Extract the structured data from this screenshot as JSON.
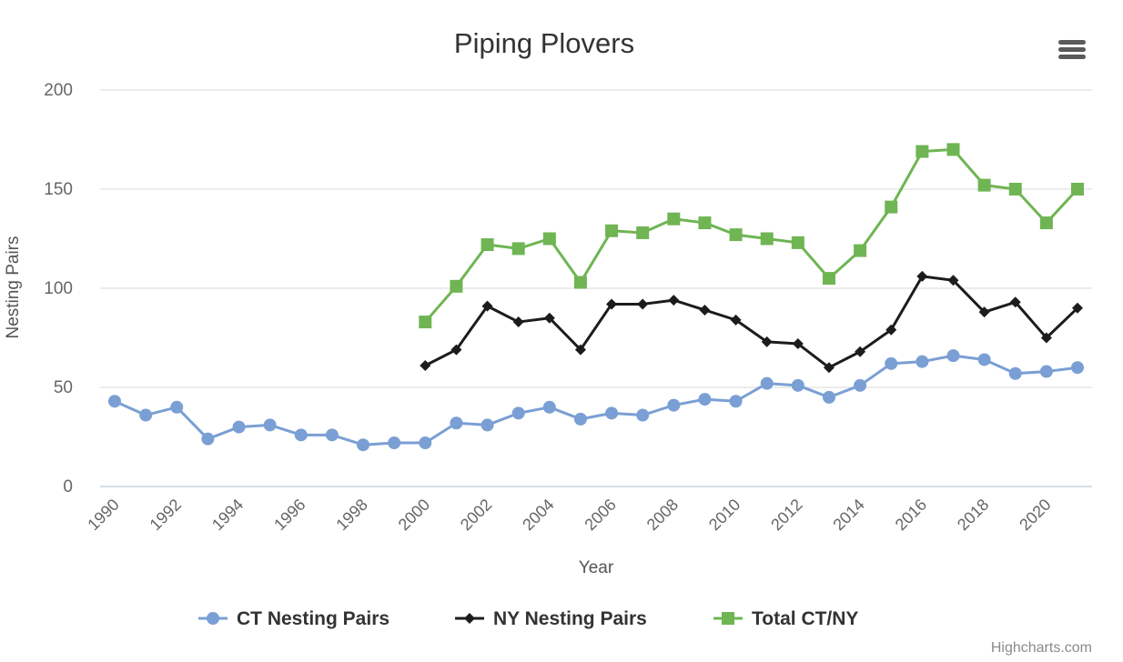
{
  "menu": {
    "icon": "hamburger-menu-icon"
  },
  "credits": "Highcharts.com",
  "chart_data": {
    "type": "line",
    "title": "Piping Plovers",
    "xlabel": "Year",
    "ylabel": "Nesting Pairs",
    "xlim": [
      1990,
      2021
    ],
    "ylim": [
      0,
      200
    ],
    "x_ticks": [
      1990,
      1992,
      1994,
      1996,
      1998,
      2000,
      2002,
      2004,
      2006,
      2008,
      2010,
      2012,
      2014,
      2016,
      2018,
      2020
    ],
    "y_ticks": [
      0,
      50,
      100,
      150,
      200
    ],
    "grid": true,
    "legend_position": "bottom-center",
    "series": [
      {
        "name": "CT Nesting Pairs",
        "color": "#7a9fd4",
        "marker": "circle",
        "points": [
          [
            1990,
            43
          ],
          [
            1991,
            36
          ],
          [
            1992,
            40
          ],
          [
            1993,
            24
          ],
          [
            1994,
            30
          ],
          [
            1995,
            31
          ],
          [
            1996,
            26
          ],
          [
            1997,
            26
          ],
          [
            1998,
            21
          ],
          [
            1999,
            22
          ],
          [
            2000,
            22
          ],
          [
            2001,
            32
          ],
          [
            2002,
            31
          ],
          [
            2003,
            37
          ],
          [
            2004,
            40
          ],
          [
            2005,
            34
          ],
          [
            2006,
            37
          ],
          [
            2007,
            36
          ],
          [
            2008,
            41
          ],
          [
            2009,
            44
          ],
          [
            2010,
            43
          ],
          [
            2011,
            52
          ],
          [
            2012,
            51
          ],
          [
            2013,
            45
          ],
          [
            2014,
            51
          ],
          [
            2015,
            62
          ],
          [
            2016,
            63
          ],
          [
            2017,
            66
          ],
          [
            2018,
            64
          ],
          [
            2019,
            57
          ],
          [
            2020,
            58
          ],
          [
            2021,
            60
          ]
        ]
      },
      {
        "name": "NY Nesting Pairs",
        "color": "#1c1c1c",
        "marker": "diamond",
        "points": [
          [
            2000,
            61
          ],
          [
            2001,
            69
          ],
          [
            2002,
            91
          ],
          [
            2003,
            83
          ],
          [
            2004,
            85
          ],
          [
            2005,
            69
          ],
          [
            2006,
            92
          ],
          [
            2007,
            92
          ],
          [
            2008,
            94
          ],
          [
            2009,
            89
          ],
          [
            2010,
            84
          ],
          [
            2011,
            73
          ],
          [
            2012,
            72
          ],
          [
            2013,
            60
          ],
          [
            2014,
            68
          ],
          [
            2015,
            79
          ],
          [
            2016,
            106
          ],
          [
            2017,
            104
          ],
          [
            2018,
            88
          ],
          [
            2019,
            93
          ],
          [
            2020,
            75
          ],
          [
            2021,
            90
          ]
        ]
      },
      {
        "name": "Total CT/NY",
        "color": "#6fb553",
        "marker": "square",
        "points": [
          [
            2000,
            83
          ],
          [
            2001,
            101
          ],
          [
            2002,
            122
          ],
          [
            2003,
            120
          ],
          [
            2004,
            125
          ],
          [
            2005,
            103
          ],
          [
            2006,
            129
          ],
          [
            2007,
            128
          ],
          [
            2008,
            135
          ],
          [
            2009,
            133
          ],
          [
            2010,
            127
          ],
          [
            2011,
            125
          ],
          [
            2012,
            123
          ],
          [
            2013,
            105
          ],
          [
            2014,
            119
          ],
          [
            2015,
            141
          ],
          [
            2016,
            169
          ],
          [
            2017,
            170
          ],
          [
            2018,
            152
          ],
          [
            2019,
            150
          ],
          [
            2020,
            133
          ],
          [
            2021,
            150
          ]
        ]
      }
    ]
  }
}
